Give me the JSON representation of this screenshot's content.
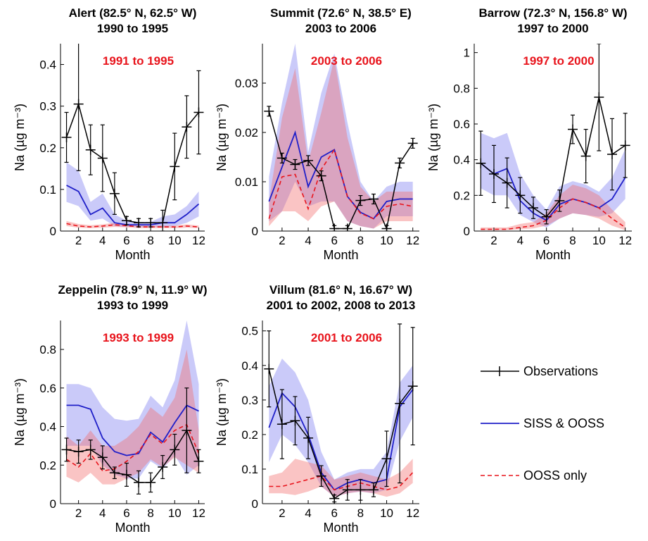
{
  "legend": [
    {
      "key": "obs",
      "label": "Observations",
      "color": "#000000"
    },
    {
      "key": "siss",
      "label": "SISS & OOSS",
      "color": "#1f1fc8"
    },
    {
      "key": "ooss",
      "label": "OOSS only",
      "color": "#e8141c"
    }
  ],
  "colors": {
    "siss_band": "#7b7bf0",
    "ooss_band": "#f26b6b",
    "period_text": "#e8141c"
  },
  "chart_data": [
    {
      "type": "line",
      "title": "Alert (82.5° N, 62.5° W)",
      "subtitle": "1990 to 1995",
      "period_label": "1991 to 1995",
      "xlabel": "Month",
      "ylabel": "Na (µg m⁻³)",
      "xlim": [
        0.5,
        12.5
      ],
      "ylim": [
        0,
        0.45
      ],
      "xticks": [
        2,
        4,
        6,
        8,
        10,
        12
      ],
      "yticks": [
        0,
        0.1,
        0.2,
        0.3,
        0.4
      ],
      "ytick_labels": [
        "0",
        "0.1",
        "0.2",
        "0.3",
        "0.4"
      ],
      "x": [
        1,
        2,
        3,
        4,
        5,
        6,
        7,
        8,
        9,
        10,
        11,
        12
      ],
      "series": [
        {
          "name": "Observations",
          "values": [
            0.225,
            0.305,
            0.195,
            0.175,
            0.09,
            0.025,
            0.02,
            0.02,
            0.02,
            0.155,
            0.25,
            0.285
          ],
          "err": [
            0.06,
            0.16,
            0.06,
            0.08,
            0.05,
            0.01,
            0.01,
            0.01,
            0.03,
            0.08,
            0.075,
            0.1
          ]
        },
        {
          "name": "SISS & OOSS",
          "values": [
            0.11,
            0.095,
            0.04,
            0.055,
            0.02,
            0.015,
            0.015,
            0.015,
            0.02,
            0.02,
            0.04,
            0.065
          ],
          "band_low": [
            0.07,
            0.06,
            0.025,
            0.03,
            0.012,
            0.01,
            0.01,
            0.01,
            0.01,
            0.012,
            0.02,
            0.035
          ],
          "band_high": [
            0.165,
            0.145,
            0.07,
            0.09,
            0.04,
            0.025,
            0.022,
            0.022,
            0.035,
            0.04,
            0.06,
            0.095
          ]
        },
        {
          "name": "OOSS only",
          "values": [
            0.018,
            0.012,
            0.01,
            0.012,
            0.015,
            0.013,
            0.01,
            0.01,
            0.01,
            0.01,
            0.012,
            0.01
          ],
          "band_low": [
            0.012,
            0.008,
            0.007,
            0.008,
            0.01,
            0.009,
            0.007,
            0.007,
            0.007,
            0.007,
            0.008,
            0.007
          ],
          "band_high": [
            0.024,
            0.017,
            0.014,
            0.016,
            0.02,
            0.017,
            0.013,
            0.013,
            0.013,
            0.013,
            0.016,
            0.013
          ]
        }
      ]
    },
    {
      "type": "line",
      "title": "Summit (72.6° N, 38.5° E)",
      "subtitle": "2003 to 2006",
      "period_label": "2003 to 2006",
      "xlabel": "Month",
      "ylabel": "Na (µg m⁻³)",
      "xlim": [
        0.5,
        12.5
      ],
      "ylim": [
        0,
        0.038
      ],
      "xticks": [
        2,
        4,
        6,
        8,
        10,
        12
      ],
      "yticks": [
        0,
        0.01,
        0.02,
        0.03
      ],
      "ytick_labels": [
        "0",
        "0.01",
        "0.02",
        "0.03"
      ],
      "x": [
        1,
        2,
        3,
        4,
        5,
        6,
        7,
        8,
        9,
        10,
        11,
        12
      ],
      "series": [
        {
          "name": "Observations",
          "values": [
            0.0243,
            0.0148,
            0.0135,
            0.0143,
            0.0112,
            0.0005,
            0.0005,
            0.0062,
            0.0065,
            0.0005,
            0.0138,
            0.0178
          ],
          "err": [
            0.001,
            0.001,
            0.001,
            0.001,
            0.001,
            0.0006,
            0.0006,
            0.001,
            0.001,
            0.0006,
            0.001,
            0.001
          ]
        },
        {
          "name": "SISS & OOSS",
          "values": [
            0.006,
            0.013,
            0.02,
            0.009,
            0.015,
            0.0165,
            0.007,
            0.0038,
            0.0025,
            0.006,
            0.0065,
            0.0065
          ],
          "band_low": [
            0.002,
            0.004,
            0.01,
            0.005,
            0.006,
            0.006,
            0.002,
            0.001,
            0.0005,
            0.003,
            0.003,
            0.003
          ],
          "band_high": [
            0.011,
            0.026,
            0.038,
            0.016,
            0.028,
            0.036,
            0.022,
            0.01,
            0.006,
            0.009,
            0.01,
            0.01
          ]
        },
        {
          "name": "OOSS only",
          "values": [
            0.0025,
            0.011,
            0.0115,
            0.0045,
            0.0125,
            0.0165,
            0.007,
            0.0036,
            0.0025,
            0.005,
            0.0055,
            0.005
          ],
          "band_low": [
            0.001,
            0.004,
            0.004,
            0.002,
            0.005,
            0.006,
            0.002,
            0.001,
            0.0005,
            0.002,
            0.002,
            0.002
          ],
          "band_high": [
            0.006,
            0.023,
            0.033,
            0.014,
            0.024,
            0.035,
            0.019,
            0.009,
            0.006,
            0.008,
            0.008,
            0.008
          ]
        }
      ]
    },
    {
      "type": "line",
      "title": "Barrow (72.3° N, 156.8° W)",
      "subtitle": "1997 to 2000",
      "period_label": "1997 to 2000",
      "xlabel": "Month",
      "ylabel": "Na (µg m⁻³)",
      "xlim": [
        0.5,
        12.5
      ],
      "ylim": [
        0,
        1.05
      ],
      "xticks": [
        2,
        4,
        6,
        8,
        10,
        12
      ],
      "yticks": [
        0,
        0.2,
        0.4,
        0.6,
        0.8,
        1
      ],
      "ytick_labels": [
        "0",
        "0.2",
        "0.4",
        "0.6",
        "0.8",
        "1"
      ],
      "x": [
        1,
        2,
        3,
        4,
        5,
        6,
        7,
        8,
        9,
        10,
        11,
        12
      ],
      "series": [
        {
          "name": "Observations",
          "values": [
            0.38,
            0.32,
            0.27,
            0.2,
            0.13,
            0.08,
            0.17,
            0.57,
            0.42,
            0.75,
            0.43,
            0.48
          ],
          "err": [
            0.18,
            0.16,
            0.14,
            0.1,
            0.06,
            0.04,
            0.06,
            0.08,
            0.15,
            0.3,
            0.2,
            0.18
          ]
        },
        {
          "name": "SISS & OOSS",
          "values": [
            0.38,
            0.32,
            0.35,
            0.17,
            0.1,
            0.06,
            0.15,
            0.18,
            0.16,
            0.13,
            0.18,
            0.3
          ],
          "band_low": [
            0.24,
            0.2,
            0.2,
            0.09,
            0.05,
            0.02,
            0.07,
            0.1,
            0.09,
            0.08,
            0.1,
            0.18
          ],
          "band_high": [
            0.55,
            0.52,
            0.55,
            0.32,
            0.2,
            0.12,
            0.25,
            0.28,
            0.26,
            0.22,
            0.3,
            0.46
          ]
        },
        {
          "name": "OOSS only",
          "values": [
            0.01,
            0.01,
            0.01,
            0.02,
            0.03,
            0.06,
            0.13,
            0.18,
            0.16,
            0.13,
            0.07,
            0.02
          ],
          "band_low": [
            0.005,
            0.005,
            0.006,
            0.01,
            0.015,
            0.03,
            0.07,
            0.1,
            0.09,
            0.07,
            0.03,
            0.005
          ],
          "band_high": [
            0.02,
            0.02,
            0.02,
            0.04,
            0.05,
            0.1,
            0.2,
            0.26,
            0.24,
            0.2,
            0.12,
            0.05
          ]
        }
      ]
    },
    {
      "type": "line",
      "title": "Zeppelin (78.9° N, 11.9° W)",
      "subtitle": "1993 to 1999",
      "period_label": "1993 to 1999",
      "xlabel": "Month",
      "ylabel": "Na (µg m⁻³)",
      "xlim": [
        0.5,
        12.5
      ],
      "ylim": [
        0,
        0.95
      ],
      "xticks": [
        2,
        4,
        6,
        8,
        10,
        12
      ],
      "yticks": [
        0,
        0.2,
        0.4,
        0.6,
        0.8
      ],
      "ytick_labels": [
        "0",
        "0.2",
        "0.4",
        "0.6",
        "0.8"
      ],
      "x": [
        1,
        2,
        3,
        4,
        5,
        6,
        7,
        8,
        9,
        10,
        11,
        12
      ],
      "series": [
        {
          "name": "Observations",
          "values": [
            0.28,
            0.27,
            0.28,
            0.24,
            0.16,
            0.15,
            0.11,
            0.11,
            0.19,
            0.28,
            0.38,
            0.22
          ],
          "err": [
            0.06,
            0.06,
            0.05,
            0.06,
            0.03,
            0.06,
            0.06,
            0.05,
            0.06,
            0.08,
            0.22,
            0.06
          ]
        },
        {
          "name": "SISS & OOSS",
          "values": [
            0.51,
            0.51,
            0.49,
            0.34,
            0.27,
            0.25,
            0.26,
            0.37,
            0.32,
            0.42,
            0.51,
            0.48
          ],
          "band_low": [
            0.3,
            0.3,
            0.3,
            0.2,
            0.15,
            0.13,
            0.13,
            0.22,
            0.18,
            0.25,
            0.15,
            0.2
          ],
          "band_high": [
            0.62,
            0.62,
            0.6,
            0.5,
            0.44,
            0.43,
            0.44,
            0.56,
            0.5,
            0.64,
            0.95,
            0.62
          ]
        },
        {
          "name": "OOSS only",
          "values": [
            0.23,
            0.19,
            0.26,
            0.17,
            0.18,
            0.22,
            0.27,
            0.36,
            0.31,
            0.38,
            0.41,
            0.26
          ],
          "band_low": [
            0.14,
            0.11,
            0.16,
            0.1,
            0.1,
            0.13,
            0.16,
            0.23,
            0.19,
            0.24,
            0.2,
            0.16
          ],
          "band_high": [
            0.35,
            0.3,
            0.38,
            0.3,
            0.3,
            0.34,
            0.4,
            0.5,
            0.45,
            0.55,
            0.8,
            0.38
          ]
        }
      ]
    },
    {
      "type": "line",
      "title": "Villum (81.6° N, 16.67° W)",
      "subtitle": "2001 to 2002, 2008 to 2013",
      "period_label": "2001 to 2006",
      "xlabel": "Month",
      "ylabel": "Na (µg m⁻³)",
      "xlim": [
        0.5,
        12.5
      ],
      "ylim": [
        0,
        0.53
      ],
      "xticks": [
        2,
        4,
        6,
        8,
        10,
        12
      ],
      "yticks": [
        0,
        0.1,
        0.2,
        0.3,
        0.4,
        0.5
      ],
      "ytick_labels": [
        "0",
        "0.1",
        "0.2",
        "0.3",
        "0.4",
        "0.5"
      ],
      "x": [
        1,
        2,
        3,
        4,
        5,
        6,
        7,
        8,
        9,
        10,
        11,
        12
      ],
      "series": [
        {
          "name": "Observations",
          "values": [
            0.39,
            0.23,
            0.24,
            0.19,
            0.08,
            0.015,
            0.04,
            0.04,
            0.04,
            0.13,
            0.29,
            0.34
          ],
          "err": [
            0.11,
            0.1,
            0.07,
            0.06,
            0.03,
            0.01,
            0.03,
            0.03,
            0.02,
            0.08,
            0.23,
            0.17
          ]
        },
        {
          "name": "SISS & OOSS",
          "values": [
            0.22,
            0.32,
            0.28,
            0.2,
            0.09,
            0.04,
            0.06,
            0.07,
            0.06,
            0.07,
            0.28,
            0.33
          ],
          "band_low": [
            0.12,
            0.2,
            0.17,
            0.12,
            0.05,
            0.02,
            0.03,
            0.035,
            0.03,
            0.04,
            0.18,
            0.25
          ],
          "band_high": [
            0.34,
            0.42,
            0.38,
            0.3,
            0.15,
            0.07,
            0.09,
            0.1,
            0.1,
            0.15,
            0.35,
            0.4
          ]
        },
        {
          "name": "OOSS only",
          "values": [
            0.05,
            0.05,
            0.06,
            0.07,
            0.08,
            0.04,
            0.05,
            0.06,
            0.05,
            0.04,
            0.05,
            0.09
          ],
          "band_low": [
            0.03,
            0.03,
            0.025,
            0.035,
            0.05,
            0.02,
            0.03,
            0.035,
            0.03,
            0.02,
            0.03,
            0.06
          ],
          "band_high": [
            0.08,
            0.09,
            0.13,
            0.12,
            0.11,
            0.07,
            0.08,
            0.09,
            0.08,
            0.07,
            0.09,
            0.13
          ]
        }
      ]
    }
  ]
}
